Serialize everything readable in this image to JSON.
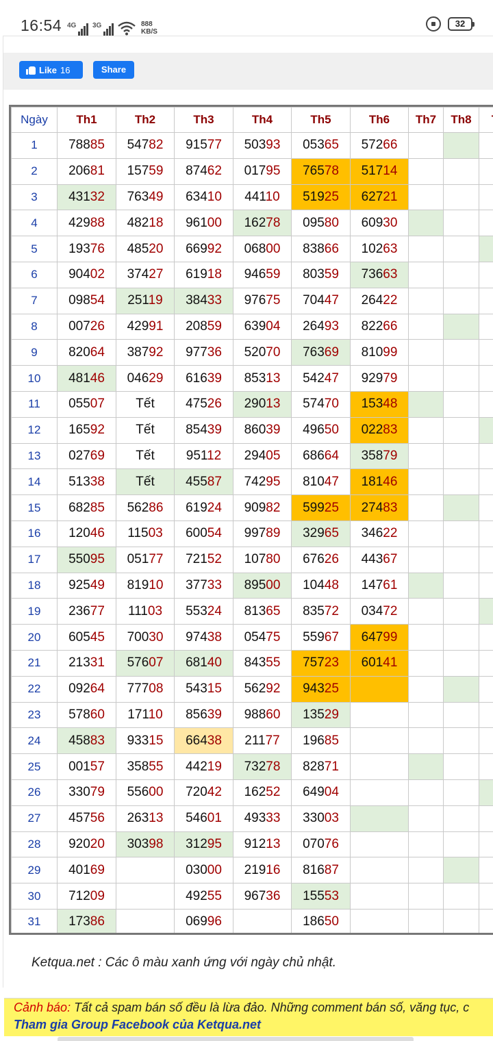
{
  "status_bar": {
    "time": "16:54",
    "net1": "4G",
    "net2": "3G",
    "speed_value": "888",
    "speed_unit": "KB/S",
    "battery": "32",
    "icons": [
      "signal-icon",
      "wifi-icon",
      "rotation-lock-icon",
      "battery-icon"
    ]
  },
  "social": {
    "like_label": "Like",
    "like_count": "16",
    "share_label": "Share",
    "accent": "#1877f2"
  },
  "table": {
    "headers": [
      "Ngày",
      "Th1",
      "Th2",
      "Th3",
      "Th4",
      "Th5",
      "Th6",
      "Th7",
      "Th8",
      "T"
    ],
    "rows": [
      {
        "day": "1",
        "cells": [
          {
            "v": "78885"
          },
          {
            "v": "54782"
          },
          {
            "v": "91577"
          },
          {
            "v": "50393"
          },
          {
            "v": "05365"
          },
          {
            "v": "57266"
          },
          {
            "v": ""
          },
          {
            "v": "",
            "bg": "sun"
          },
          {
            "v": ""
          }
        ]
      },
      {
        "day": "2",
        "cells": [
          {
            "v": "20681"
          },
          {
            "v": "15759"
          },
          {
            "v": "87462"
          },
          {
            "v": "01795"
          },
          {
            "v": "76578",
            "bg": "gold"
          },
          {
            "v": "51714",
            "bg": "gold"
          },
          {
            "v": ""
          },
          {
            "v": ""
          },
          {
            "v": ""
          }
        ]
      },
      {
        "day": "3",
        "cells": [
          {
            "v": "43132",
            "bg": "sun"
          },
          {
            "v": "76349"
          },
          {
            "v": "63410"
          },
          {
            "v": "44110"
          },
          {
            "v": "51925",
            "bg": "gold"
          },
          {
            "v": "62721",
            "bg": "gold"
          },
          {
            "v": ""
          },
          {
            "v": ""
          },
          {
            "v": ""
          }
        ]
      },
      {
        "day": "4",
        "cells": [
          {
            "v": "42988"
          },
          {
            "v": "48218"
          },
          {
            "v": "96100"
          },
          {
            "v": "16278",
            "bg": "sun"
          },
          {
            "v": "09580"
          },
          {
            "v": "60930"
          },
          {
            "v": "",
            "bg": "sun"
          },
          {
            "v": ""
          },
          {
            "v": ""
          }
        ]
      },
      {
        "day": "5",
        "cells": [
          {
            "v": "19376"
          },
          {
            "v": "48520"
          },
          {
            "v": "66992"
          },
          {
            "v": "06800"
          },
          {
            "v": "83866"
          },
          {
            "v": "10263"
          },
          {
            "v": ""
          },
          {
            "v": ""
          },
          {
            "v": "",
            "bg": "sun"
          }
        ]
      },
      {
        "day": "6",
        "cells": [
          {
            "v": "90402"
          },
          {
            "v": "37427"
          },
          {
            "v": "61918"
          },
          {
            "v": "94659"
          },
          {
            "v": "80359"
          },
          {
            "v": "73663",
            "bg": "sun"
          },
          {
            "v": ""
          },
          {
            "v": ""
          },
          {
            "v": ""
          }
        ]
      },
      {
        "day": "7",
        "cells": [
          {
            "v": "09854"
          },
          {
            "v": "25119",
            "bg": "sun"
          },
          {
            "v": "38433",
            "bg": "sun"
          },
          {
            "v": "97675"
          },
          {
            "v": "70447"
          },
          {
            "v": "26422"
          },
          {
            "v": ""
          },
          {
            "v": ""
          },
          {
            "v": ""
          }
        ]
      },
      {
        "day": "8",
        "cells": [
          {
            "v": "00726"
          },
          {
            "v": "42991"
          },
          {
            "v": "20859"
          },
          {
            "v": "63904"
          },
          {
            "v": "26493"
          },
          {
            "v": "82266"
          },
          {
            "v": ""
          },
          {
            "v": "",
            "bg": "sun"
          },
          {
            "v": ""
          }
        ]
      },
      {
        "day": "9",
        "cells": [
          {
            "v": "82064"
          },
          {
            "v": "38792"
          },
          {
            "v": "97736"
          },
          {
            "v": "52070"
          },
          {
            "v": "76369",
            "bg": "sun"
          },
          {
            "v": "81099"
          },
          {
            "v": ""
          },
          {
            "v": ""
          },
          {
            "v": ""
          }
        ]
      },
      {
        "day": "10",
        "cells": [
          {
            "v": "48146",
            "bg": "sun"
          },
          {
            "v": "04629"
          },
          {
            "v": "61639"
          },
          {
            "v": "85313"
          },
          {
            "v": "54247"
          },
          {
            "v": "92979"
          },
          {
            "v": ""
          },
          {
            "v": ""
          },
          {
            "v": ""
          }
        ]
      },
      {
        "day": "11",
        "cells": [
          {
            "v": "05507"
          },
          {
            "v": "Tết",
            "tet": true
          },
          {
            "v": "47526"
          },
          {
            "v": "29013",
            "bg": "sun"
          },
          {
            "v": "57470"
          },
          {
            "v": "15348",
            "bg": "gold"
          },
          {
            "v": "",
            "bg": "sun"
          },
          {
            "v": ""
          },
          {
            "v": ""
          }
        ]
      },
      {
        "day": "12",
        "cells": [
          {
            "v": "16592"
          },
          {
            "v": "Tết",
            "tet": true
          },
          {
            "v": "85439"
          },
          {
            "v": "86039"
          },
          {
            "v": "49650"
          },
          {
            "v": "02283",
            "bg": "gold"
          },
          {
            "v": ""
          },
          {
            "v": ""
          },
          {
            "v": "",
            "bg": "sun"
          }
        ]
      },
      {
        "day": "13",
        "cells": [
          {
            "v": "02769"
          },
          {
            "v": "Tết",
            "tet": true
          },
          {
            "v": "95112"
          },
          {
            "v": "29405"
          },
          {
            "v": "68664"
          },
          {
            "v": "35879",
            "bg": "sun"
          },
          {
            "v": ""
          },
          {
            "v": ""
          },
          {
            "v": ""
          }
        ]
      },
      {
        "day": "14",
        "cells": [
          {
            "v": "51338"
          },
          {
            "v": "Tết",
            "tet": true,
            "bg": "sun"
          },
          {
            "v": "45587",
            "bg": "sun"
          },
          {
            "v": "74295"
          },
          {
            "v": "81047"
          },
          {
            "v": "18146",
            "bg": "gold"
          },
          {
            "v": ""
          },
          {
            "v": ""
          },
          {
            "v": ""
          }
        ]
      },
      {
        "day": "15",
        "cells": [
          {
            "v": "68285"
          },
          {
            "v": "56286"
          },
          {
            "v": "61924"
          },
          {
            "v": "90982"
          },
          {
            "v": "59925",
            "bg": "gold"
          },
          {
            "v": "27483",
            "bg": "gold"
          },
          {
            "v": ""
          },
          {
            "v": "",
            "bg": "sun"
          },
          {
            "v": ""
          }
        ]
      },
      {
        "day": "16",
        "cells": [
          {
            "v": "12046"
          },
          {
            "v": "11503"
          },
          {
            "v": "60054"
          },
          {
            "v": "99789"
          },
          {
            "v": "32965",
            "bg": "sun"
          },
          {
            "v": "34622"
          },
          {
            "v": ""
          },
          {
            "v": ""
          },
          {
            "v": ""
          }
        ]
      },
      {
        "day": "17",
        "cells": [
          {
            "v": "55095",
            "bg": "sun"
          },
          {
            "v": "05177"
          },
          {
            "v": "72152"
          },
          {
            "v": "10780"
          },
          {
            "v": "67626"
          },
          {
            "v": "44367"
          },
          {
            "v": ""
          },
          {
            "v": ""
          },
          {
            "v": ""
          }
        ]
      },
      {
        "day": "18",
        "cells": [
          {
            "v": "92549"
          },
          {
            "v": "81910"
          },
          {
            "v": "37733"
          },
          {
            "v": "89500",
            "bg": "sun"
          },
          {
            "v": "10448"
          },
          {
            "v": "14761"
          },
          {
            "v": "",
            "bg": "sun"
          },
          {
            "v": ""
          },
          {
            "v": ""
          }
        ]
      },
      {
        "day": "19",
        "cells": [
          {
            "v": "23677"
          },
          {
            "v": "11103"
          },
          {
            "v": "55324"
          },
          {
            "v": "81365"
          },
          {
            "v": "83572"
          },
          {
            "v": "03472"
          },
          {
            "v": ""
          },
          {
            "v": ""
          },
          {
            "v": "",
            "bg": "sun"
          }
        ]
      },
      {
        "day": "20",
        "cells": [
          {
            "v": "60545"
          },
          {
            "v": "70030"
          },
          {
            "v": "97438"
          },
          {
            "v": "05475"
          },
          {
            "v": "55967"
          },
          {
            "v": "64799",
            "bg": "gold"
          },
          {
            "v": ""
          },
          {
            "v": ""
          },
          {
            "v": ""
          }
        ]
      },
      {
        "day": "21",
        "cells": [
          {
            "v": "21331"
          },
          {
            "v": "57607",
            "bg": "sun"
          },
          {
            "v": "68140",
            "bg": "sun"
          },
          {
            "v": "84355"
          },
          {
            "v": "75723",
            "bg": "gold"
          },
          {
            "v": "60141",
            "bg": "gold"
          },
          {
            "v": ""
          },
          {
            "v": ""
          },
          {
            "v": ""
          }
        ]
      },
      {
        "day": "22",
        "cells": [
          {
            "v": "09264"
          },
          {
            "v": "77708"
          },
          {
            "v": "54315"
          },
          {
            "v": "56292"
          },
          {
            "v": "94325",
            "bg": "gold"
          },
          {
            "v": "",
            "bg": "gold"
          },
          {
            "v": ""
          },
          {
            "v": "",
            "bg": "sun"
          },
          {
            "v": ""
          }
        ]
      },
      {
        "day": "23",
        "cells": [
          {
            "v": "57860"
          },
          {
            "v": "17110"
          },
          {
            "v": "85639"
          },
          {
            "v": "98860"
          },
          {
            "v": "13529",
            "bg": "sun"
          },
          {
            "v": ""
          },
          {
            "v": ""
          },
          {
            "v": ""
          },
          {
            "v": ""
          }
        ]
      },
      {
        "day": "24",
        "cells": [
          {
            "v": "45883",
            "bg": "sun"
          },
          {
            "v": "93315"
          },
          {
            "v": "66438",
            "bg": "cream"
          },
          {
            "v": "21177"
          },
          {
            "v": "19685"
          },
          {
            "v": ""
          },
          {
            "v": ""
          },
          {
            "v": ""
          },
          {
            "v": ""
          }
        ]
      },
      {
        "day": "25",
        "cells": [
          {
            "v": "00157"
          },
          {
            "v": "35855"
          },
          {
            "v": "44219"
          },
          {
            "v": "73278",
            "bg": "sun"
          },
          {
            "v": "82871"
          },
          {
            "v": ""
          },
          {
            "v": "",
            "bg": "sun"
          },
          {
            "v": ""
          },
          {
            "v": ""
          }
        ]
      },
      {
        "day": "26",
        "cells": [
          {
            "v": "33079"
          },
          {
            "v": "55600"
          },
          {
            "v": "72042"
          },
          {
            "v": "16252"
          },
          {
            "v": "64904"
          },
          {
            "v": ""
          },
          {
            "v": ""
          },
          {
            "v": ""
          },
          {
            "v": "",
            "bg": "sun"
          }
        ]
      },
      {
        "day": "27",
        "cells": [
          {
            "v": "45756"
          },
          {
            "v": "26313"
          },
          {
            "v": "54601"
          },
          {
            "v": "49333"
          },
          {
            "v": "33003"
          },
          {
            "v": "",
            "bg": "sun"
          },
          {
            "v": ""
          },
          {
            "v": ""
          },
          {
            "v": ""
          }
        ]
      },
      {
        "day": "28",
        "cells": [
          {
            "v": "92020"
          },
          {
            "v": "30398",
            "bg": "sun"
          },
          {
            "v": "31295",
            "bg": "sun"
          },
          {
            "v": "91213"
          },
          {
            "v": "07076"
          },
          {
            "v": ""
          },
          {
            "v": ""
          },
          {
            "v": ""
          },
          {
            "v": ""
          }
        ]
      },
      {
        "day": "29",
        "cells": [
          {
            "v": "40169"
          },
          {
            "v": ""
          },
          {
            "v": "03000"
          },
          {
            "v": "21916"
          },
          {
            "v": "81687"
          },
          {
            "v": ""
          },
          {
            "v": ""
          },
          {
            "v": "",
            "bg": "sun"
          },
          {
            "v": ""
          }
        ]
      },
      {
        "day": "30",
        "cells": [
          {
            "v": "71209"
          },
          {
            "v": ""
          },
          {
            "v": "49255"
          },
          {
            "v": "96736"
          },
          {
            "v": "15553",
            "bg": "sun"
          },
          {
            "v": ""
          },
          {
            "v": ""
          },
          {
            "v": ""
          },
          {
            "v": ""
          }
        ]
      },
      {
        "day": "31",
        "cells": [
          {
            "v": "17386",
            "bg": "sun"
          },
          {
            "v": ""
          },
          {
            "v": "06996"
          },
          {
            "v": ""
          },
          {
            "v": "18650"
          },
          {
            "v": ""
          },
          {
            "v": ""
          },
          {
            "v": ""
          },
          {
            "v": ""
          }
        ]
      }
    ],
    "colors": {
      "sunday_cell": "#e0efdb",
      "highlight_cell": "#ffbf00",
      "special_cell": "#ffe7a5",
      "header_text": "#8b0000",
      "day_text": "#1a3ea8",
      "tail_digits": "#a00000"
    }
  },
  "note": "Ketqua.net : Các ô màu xanh ứng với ngày chủ nhật.",
  "warning": {
    "lead": "Cảnh báo:",
    "text": " Tất cả spam bán số đều là lừa đảo. Những comment bán số, văng tục, c",
    "group_link": "Tham gia Group Facebook của Ketqua.net"
  }
}
